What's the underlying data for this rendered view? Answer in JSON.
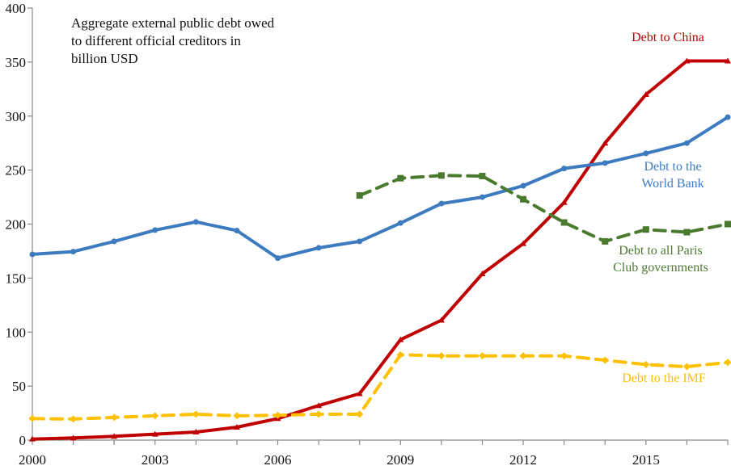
{
  "chart_data": {
    "type": "line",
    "title_lines": [
      "Aggregate external public debt owed",
      "to different official creditors in",
      "billion USD"
    ],
    "xlabel": "",
    "ylabel": "",
    "xlim": [
      2000,
      2017
    ],
    "ylim": [
      0,
      400
    ],
    "x_ticks": [
      2000,
      2003,
      2006,
      2009,
      2012,
      2015
    ],
    "x_tick_labels": [
      "2000",
      "2003",
      "2006",
      "2009",
      "2012",
      "2015"
    ],
    "y_ticks": [
      0,
      50,
      100,
      150,
      200,
      250,
      300,
      350,
      400
    ],
    "y_tick_labels": [
      "0",
      "50",
      "100",
      "150",
      "200",
      "250",
      "300",
      "350",
      "400"
    ],
    "grid": false,
    "legend": "inline labels",
    "series": [
      {
        "name": "Debt to China",
        "label_lines": [
          "Debt to China"
        ],
        "color": "#c00000",
        "style": "solid",
        "marker": "triangle",
        "x": [
          2000,
          2001,
          2002,
          2003,
          2004,
          2005,
          2006,
          2007,
          2008,
          2009,
          2010,
          2011,
          2012,
          2013,
          2014,
          2015,
          2016,
          2017
        ],
        "y": [
          1,
          2,
          3.5,
          5.5,
          7.5,
          12,
          20,
          32,
          43,
          93,
          111,
          154,
          182,
          220,
          275,
          320,
          351,
          351
        ]
      },
      {
        "name": "Debt to the World Bank",
        "label_lines": [
          "Debt to the",
          "World Bank"
        ],
        "color": "#3c7bbf",
        "style": "solid",
        "marker": "circle",
        "x": [
          2000,
          2001,
          2002,
          2003,
          2004,
          2005,
          2006,
          2007,
          2008,
          2009,
          2010,
          2011,
          2012,
          2013,
          2014,
          2015,
          2016,
          2017
        ],
        "y": [
          172,
          174.5,
          184,
          194.5,
          202,
          194,
          168.5,
          178,
          184,
          201,
          219,
          225,
          235.5,
          251.5,
          256.5,
          265.5,
          275,
          299
        ]
      },
      {
        "name": "Debt to all Paris Club governments",
        "label_lines": [
          "Debt to all Paris",
          "Club governments"
        ],
        "color": "#4a7a2e",
        "style": "dashed",
        "marker": "square",
        "x": [
          2008,
          2009,
          2010,
          2011,
          2012,
          2013,
          2014,
          2015,
          2016,
          2017
        ],
        "y": [
          226.5,
          242.5,
          245,
          244.5,
          223,
          201.5,
          184,
          195,
          192.5,
          200
        ]
      },
      {
        "name": "Debt to the IMF",
        "label_lines": [
          "Debt to the IMF"
        ],
        "color": "#ffc000",
        "style": "dashed",
        "marker": "diamond",
        "x": [
          2000,
          2001,
          2002,
          2003,
          2004,
          2005,
          2006,
          2007,
          2008,
          2009,
          2010,
          2011,
          2012,
          2013,
          2014,
          2015,
          2016,
          2017
        ],
        "y": [
          20,
          19.5,
          21,
          22.5,
          24,
          22.5,
          23,
          24,
          24,
          79,
          78,
          78,
          78,
          78,
          74,
          70,
          68,
          72
        ]
      }
    ]
  }
}
